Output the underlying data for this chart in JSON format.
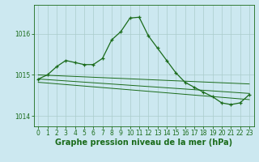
{
  "bg_color": "#cce8f0",
  "grid_color": "#aacccc",
  "line_color": "#1a6b1a",
  "xlim": [
    -0.5,
    23.5
  ],
  "ylim": [
    1013.75,
    1016.7
  ],
  "yticks": [
    1014,
    1015,
    1016
  ],
  "xticks": [
    0,
    1,
    2,
    3,
    4,
    5,
    6,
    7,
    8,
    9,
    10,
    11,
    12,
    13,
    14,
    15,
    16,
    17,
    18,
    19,
    20,
    21,
    22,
    23
  ],
  "main_x": [
    0,
    1,
    2,
    3,
    4,
    5,
    6,
    7,
    8,
    9,
    10,
    11,
    12,
    13,
    14,
    15,
    16,
    17,
    18,
    19,
    20,
    21,
    22,
    23
  ],
  "main_y": [
    1014.9,
    1015.0,
    1015.2,
    1015.35,
    1015.3,
    1015.25,
    1015.25,
    1015.4,
    1015.85,
    1016.05,
    1016.38,
    1016.4,
    1015.95,
    1015.65,
    1015.35,
    1015.05,
    1014.82,
    1014.7,
    1014.58,
    1014.47,
    1014.32,
    1014.28,
    1014.32,
    1014.52
  ],
  "trend1_x": [
    0,
    23
  ],
  "trend1_y": [
    1015.0,
    1014.78
  ],
  "trend2_x": [
    0,
    23
  ],
  "trend2_y": [
    1014.9,
    1014.55
  ],
  "trend3_x": [
    0,
    23
  ],
  "trend3_y": [
    1014.82,
    1014.4
  ],
  "xlabel": "Graphe pression niveau de la mer (hPa)",
  "xlabel_color": "#1a6b1a",
  "tick_fontsize": 5.5,
  "label_fontsize": 7.0
}
